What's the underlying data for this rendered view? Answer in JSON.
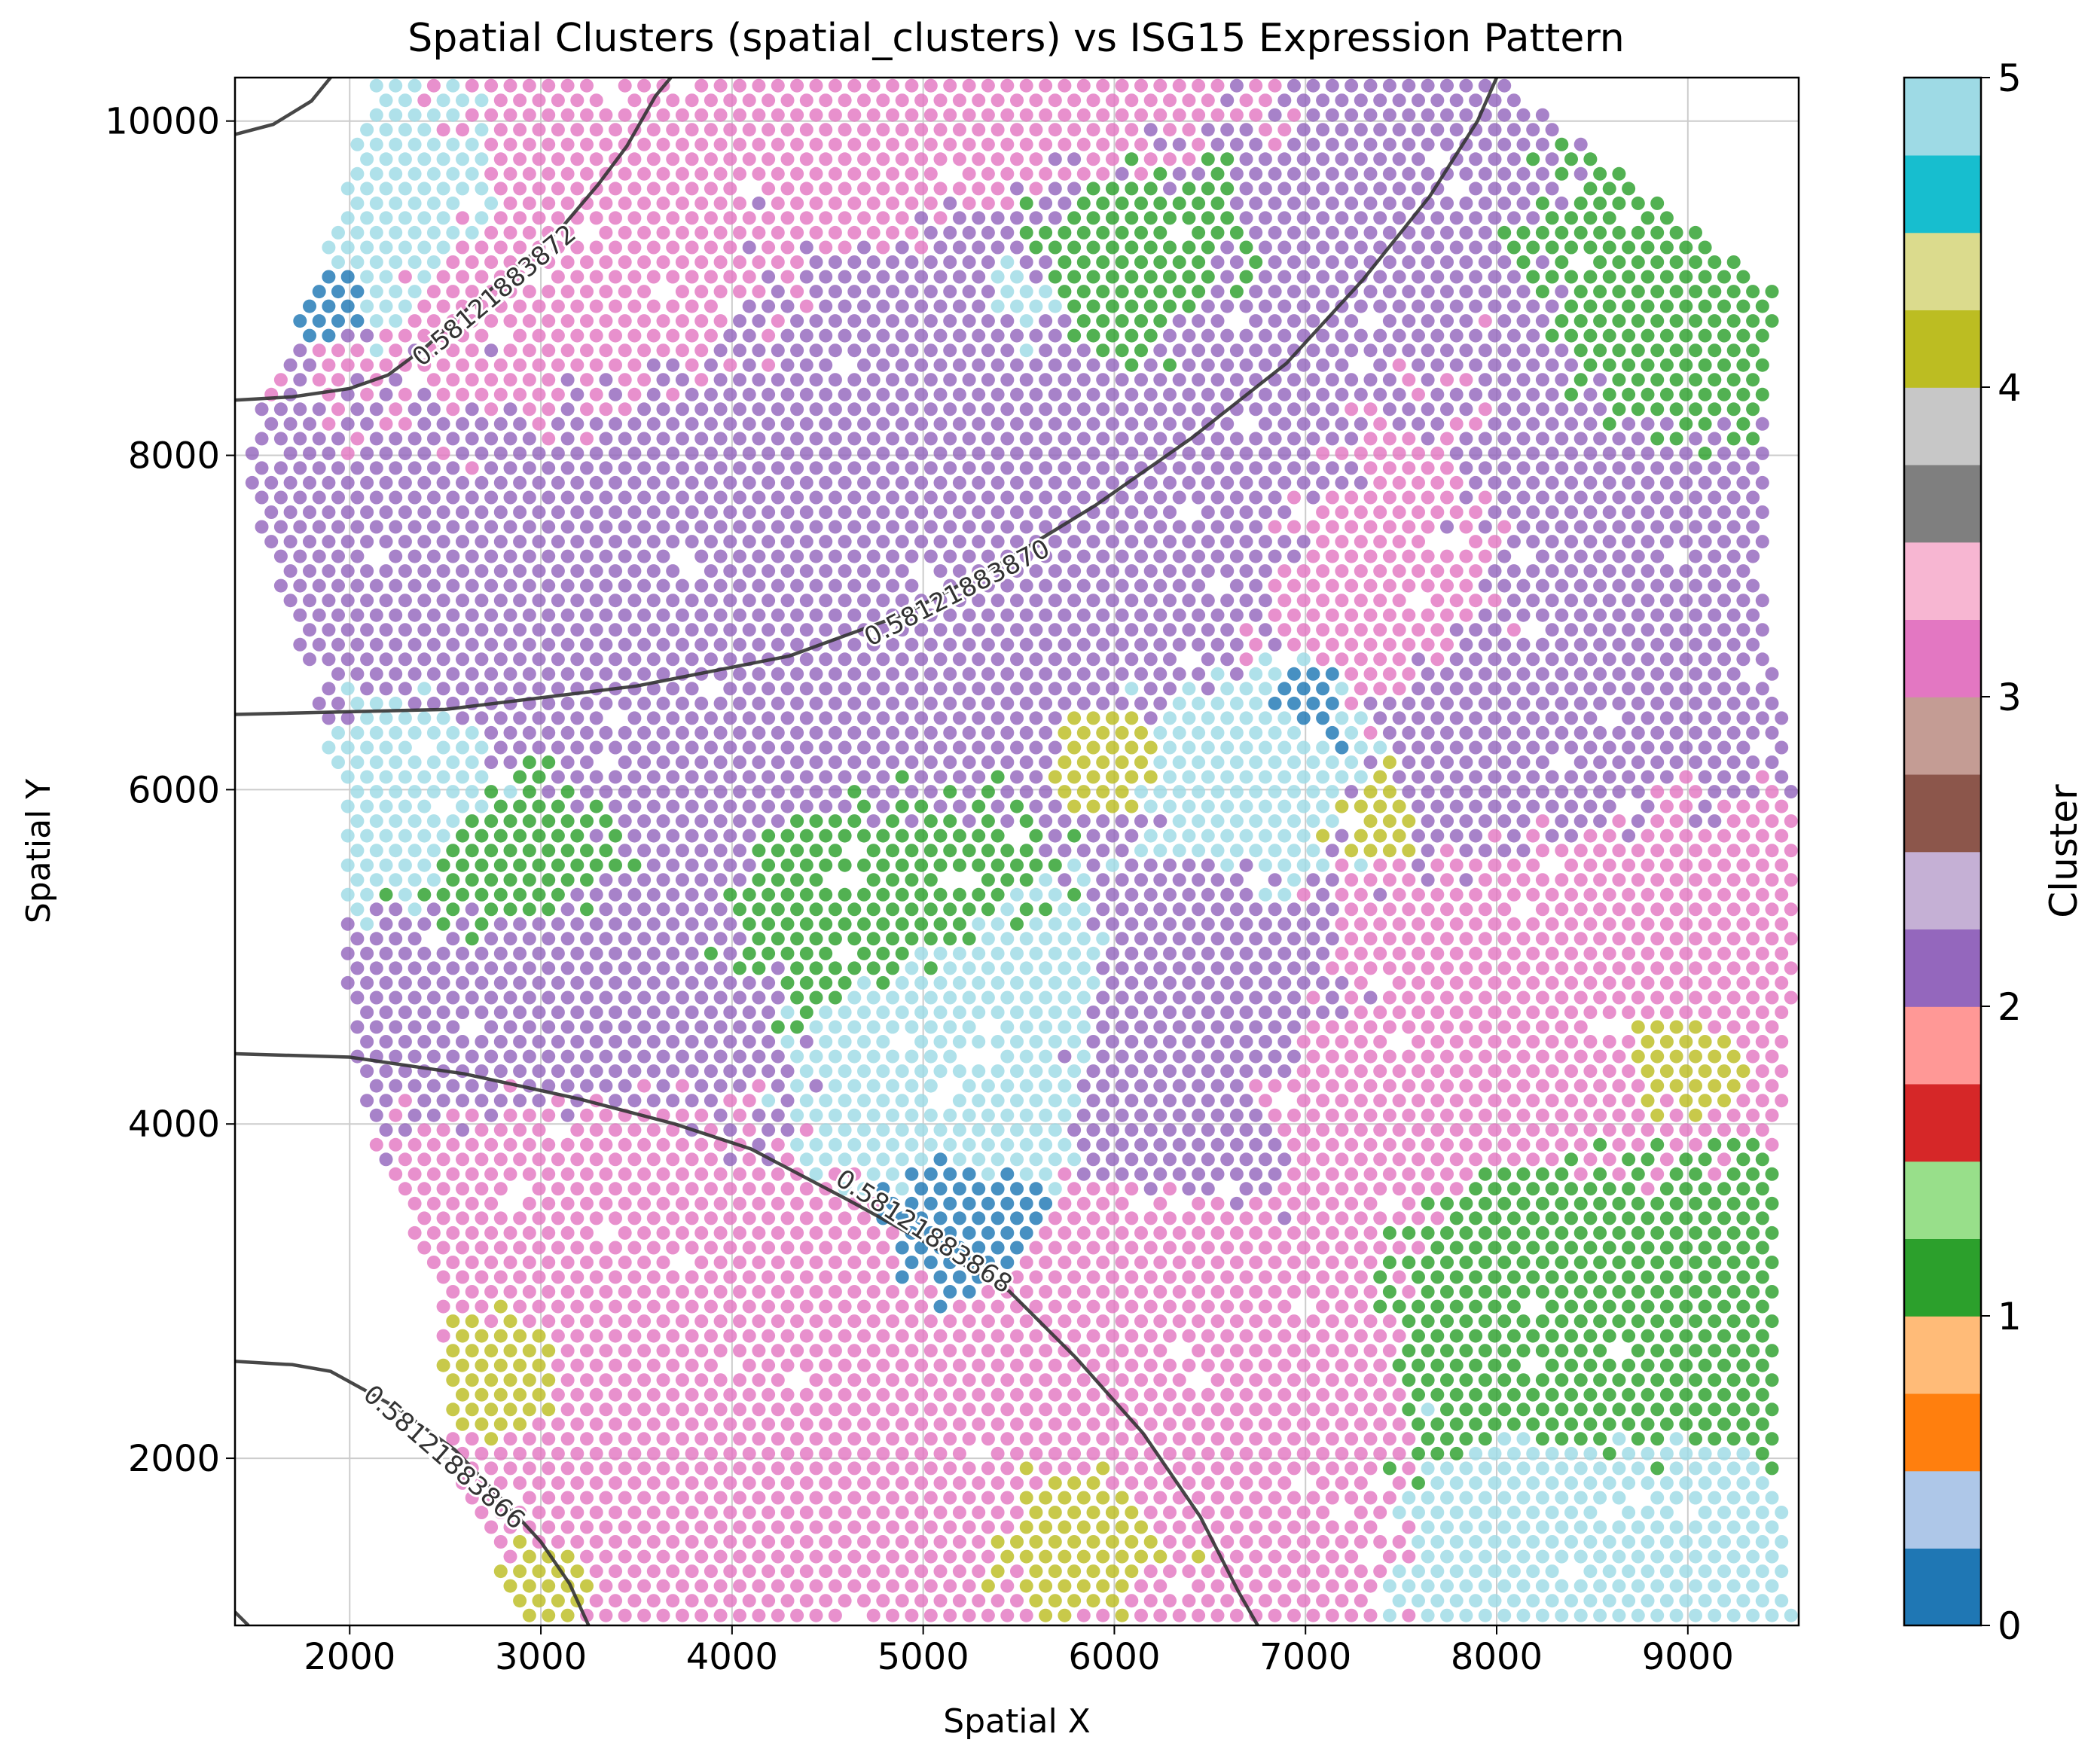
{
  "chart_data": {
    "type": "scatter",
    "title": "Spatial Clusters (spatial_clusters) vs ISG15 Expression Pattern",
    "xlabel": "Spatial X",
    "ylabel": "Spatial Y",
    "xlim": [
      1400,
      9580
    ],
    "ylim": [
      1000,
      10260
    ],
    "xticks": [
      2000,
      3000,
      4000,
      5000,
      6000,
      7000,
      8000,
      9000
    ],
    "yticks": [
      2000,
      4000,
      6000,
      8000,
      10000
    ],
    "grid": true,
    "point_grid": {
      "x_start": 1440,
      "y_start": 1060,
      "dx": 100,
      "dy": 88,
      "row_shift": 50,
      "cols": 82,
      "rows": 106
    },
    "tissue_boundary": {
      "left_x_by_y": [
        [
          1000,
          2900
        ],
        [
          2000,
          2520
        ],
        [
          3000,
          2460
        ],
        [
          4000,
          2080
        ],
        [
          5000,
          1950
        ],
        [
          6000,
          1950
        ],
        [
          7000,
          1700
        ],
        [
          8000,
          1420
        ],
        [
          9000,
          1800
        ],
        [
          10260,
          2150
        ]
      ],
      "right_x_by_y": [
        [
          1000,
          9560
        ],
        [
          2000,
          9470
        ],
        [
          3000,
          9470
        ],
        [
          4000,
          9480
        ],
        [
          5000,
          9560
        ],
        [
          6000,
          9560
        ],
        [
          7000,
          9400
        ],
        [
          8000,
          9400
        ],
        [
          9000,
          9450
        ],
        [
          10260,
          8000
        ]
      ]
    },
    "cluster_legend": {
      "label": "Cluster",
      "ticks": [
        0,
        1,
        2,
        3,
        4,
        5
      ],
      "min": 0,
      "max": 5
    },
    "cluster_colors": {
      "0": "#1f77b4",
      "1": "#2ca02c",
      "2": "#9467bd",
      "3": "#e377c2",
      "4": "#bcbd22",
      "5": "#9edae5"
    },
    "colorbar_bands": [
      "#1f77b4",
      "#aec7e8",
      "#ff7f0e",
      "#ffbb78",
      "#2ca02c",
      "#98df8a",
      "#d62728",
      "#ff9896",
      "#9467bd",
      "#c5b0d5",
      "#8c564b",
      "#c49c94",
      "#e377c2",
      "#f7b6d2",
      "#7f7f7f",
      "#c7c7c7",
      "#bcbd22",
      "#dbdb8d",
      "#17becf",
      "#9edae5"
    ],
    "cluster_regions": [
      {
        "cluster": 2,
        "x": 4200,
        "y": 7500,
        "r": 1500
      },
      {
        "cluster": 2,
        "x": 5300,
        "y": 8700,
        "r": 800
      },
      {
        "cluster": 2,
        "x": 6300,
        "y": 7700,
        "r": 1000
      },
      {
        "cluster": 2,
        "x": 8700,
        "y": 7300,
        "r": 900
      },
      {
        "cluster": 2,
        "x": 3200,
        "y": 4600,
        "r": 700
      },
      {
        "cluster": 2,
        "x": 6500,
        "y": 4500,
        "r": 600
      },
      {
        "cluster": 2,
        "x": 8000,
        "y": 6300,
        "r": 700
      },
      {
        "cluster": 3,
        "x": 3300,
        "y": 9000,
        "r": 900
      },
      {
        "cluster": 3,
        "x": 4900,
        "y": 10000,
        "r": 800
      },
      {
        "cluster": 3,
        "x": 7300,
        "y": 7300,
        "r": 700
      },
      {
        "cluster": 3,
        "x": 8400,
        "y": 5000,
        "r": 800
      },
      {
        "cluster": 3,
        "x": 4000,
        "y": 2100,
        "r": 900
      },
      {
        "cluster": 3,
        "x": 6300,
        "y": 2300,
        "r": 800
      },
      {
        "cluster": 3,
        "x": 3200,
        "y": 3800,
        "r": 600
      },
      {
        "cluster": 3,
        "x": 7200,
        "y": 4200,
        "r": 500
      },
      {
        "cluster": 1,
        "x": 4800,
        "y": 5300,
        "r": 600
      },
      {
        "cluster": 1,
        "x": 8600,
        "y": 2700,
        "r": 700
      },
      {
        "cluster": 1,
        "x": 9100,
        "y": 8600,
        "r": 500
      },
      {
        "cluster": 1,
        "x": 5900,
        "y": 9000,
        "r": 500
      },
      {
        "cluster": 1,
        "x": 2900,
        "y": 5600,
        "r": 400
      },
      {
        "cluster": 5,
        "x": 2200,
        "y": 9500,
        "r": 500
      },
      {
        "cluster": 5,
        "x": 5200,
        "y": 4600,
        "r": 600
      },
      {
        "cluster": 5,
        "x": 6800,
        "y": 6300,
        "r": 500
      },
      {
        "cluster": 5,
        "x": 8600,
        "y": 1600,
        "r": 600
      },
      {
        "cluster": 5,
        "x": 2300,
        "y": 6000,
        "r": 400
      },
      {
        "cluster": 5,
        "x": 5500,
        "y": 8900,
        "r": 400
      },
      {
        "cluster": 0,
        "x": 5200,
        "y": 3400,
        "r": 250
      },
      {
        "cluster": 0,
        "x": 7000,
        "y": 6500,
        "r": 250
      },
      {
        "cluster": 0,
        "x": 1900,
        "y": 9000,
        "r": 200
      },
      {
        "cluster": 4,
        "x": 5900,
        "y": 1600,
        "r": 350
      },
      {
        "cluster": 4,
        "x": 5900,
        "y": 6200,
        "r": 220
      },
      {
        "cluster": 4,
        "x": 2800,
        "y": 2500,
        "r": 250
      },
      {
        "cluster": 4,
        "x": 3000,
        "y": 1200,
        "r": 220
      },
      {
        "cluster": 4,
        "x": 8900,
        "y": 4400,
        "r": 250
      },
      {
        "cluster": 4,
        "x": 7400,
        "y": 5900,
        "r": 220
      }
    ],
    "contours": [
      {
        "label": "0.58121883872",
        "points": [
          [
            1400,
            8330
          ],
          [
            1700,
            8350
          ],
          [
            2000,
            8400
          ],
          [
            2200,
            8480
          ],
          [
            2400,
            8650
          ],
          [
            2600,
            8860
          ],
          [
            2850,
            9100
          ],
          [
            3100,
            9350
          ],
          [
            3300,
            9620
          ],
          [
            3450,
            9850
          ],
          [
            3600,
            10150
          ],
          [
            3680,
            10260
          ]
        ],
        "label_at": [
          2760,
          8950
        ],
        "label_angle": -40
      },
      {
        "label": "",
        "points": [
          [
            1400,
            9920
          ],
          [
            1600,
            9980
          ],
          [
            1800,
            10120
          ],
          [
            1900,
            10260
          ]
        ]
      },
      {
        "label": "0.58121883870",
        "points": [
          [
            1400,
            6450
          ],
          [
            2500,
            6480
          ],
          [
            3500,
            6620
          ],
          [
            4300,
            6800
          ],
          [
            4900,
            7050
          ],
          [
            5400,
            7350
          ],
          [
            5900,
            7700
          ],
          [
            6400,
            8100
          ],
          [
            6900,
            8550
          ],
          [
            7300,
            9050
          ],
          [
            7650,
            9550
          ],
          [
            7900,
            10000
          ],
          [
            8000,
            10260
          ]
        ],
        "label_at": [
          5180,
          7170
        ],
        "label_angle": -27
      },
      {
        "label": "0.58121883868",
        "points": [
          [
            1400,
            4420
          ],
          [
            2000,
            4400
          ],
          [
            2600,
            4300
          ],
          [
            3200,
            4150
          ],
          [
            3700,
            4000
          ],
          [
            4100,
            3850
          ],
          [
            4600,
            3550
          ],
          [
            5000,
            3300
          ],
          [
            5450,
            3000
          ],
          [
            5800,
            2600
          ],
          [
            6150,
            2150
          ],
          [
            6450,
            1650
          ],
          [
            6650,
            1200
          ],
          [
            6750,
            1000
          ]
        ],
        "label_at": [
          5000,
          3350
        ],
        "label_angle": 33
      },
      {
        "label": "0.58121883866",
        "points": [
          [
            1400,
            2580
          ],
          [
            1700,
            2560
          ],
          [
            1900,
            2520
          ],
          [
            2250,
            2300
          ],
          [
            2550,
            2050
          ],
          [
            2800,
            1750
          ],
          [
            3000,
            1500
          ],
          [
            3150,
            1250
          ],
          [
            3250,
            1000
          ]
        ],
        "label_at": [
          2490,
          2000
        ],
        "label_angle": 41
      },
      {
        "label": "",
        "points": [
          [
            1400,
            1080
          ],
          [
            1470,
            1000
          ]
        ]
      }
    ]
  }
}
